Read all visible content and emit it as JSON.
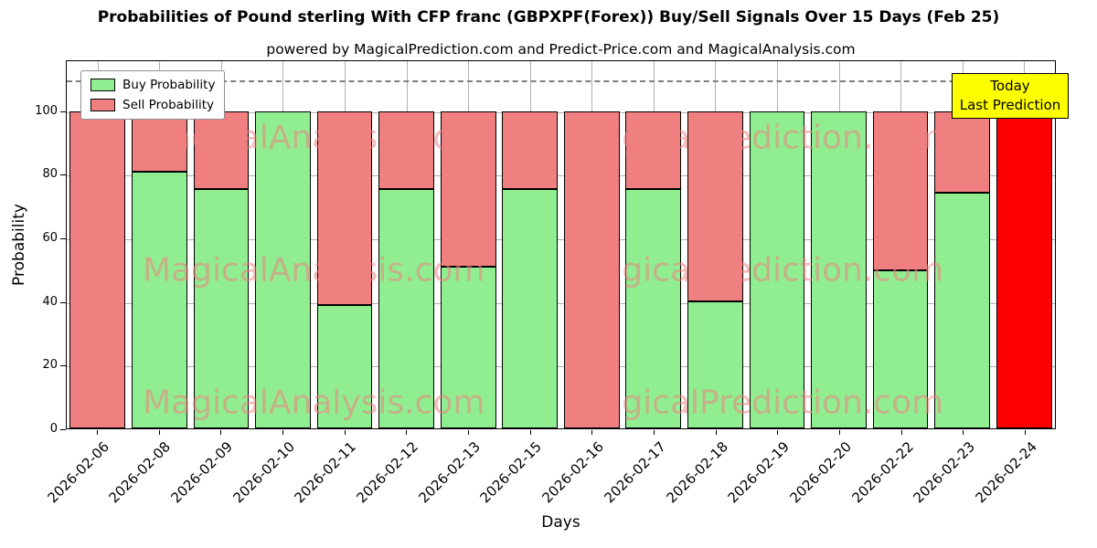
{
  "chart_data": {
    "type": "bar",
    "stacked": true,
    "title": "Probabilities of Pound sterling With CFP franc (GBPXPF(Forex)) Buy/Sell Signals Over 15 Days (Feb 25)",
    "subtitle": "powered by MagicalPrediction.com and Predict-Price.com and MagicalAnalysis.com",
    "xlabel": "Days",
    "ylabel": "Probability",
    "ylim": [
      0,
      116
    ],
    "yticks": [
      0,
      20,
      40,
      60,
      80,
      100
    ],
    "dashed_line_y": 110,
    "grid": true,
    "legend_position": "upper left",
    "categories": [
      "2026-02-06",
      "2026-02-08",
      "2026-02-09",
      "2026-02-10",
      "2026-02-11",
      "2026-02-12",
      "2026-02-13",
      "2026-02-15",
      "2026-02-16",
      "2026-02-17",
      "2026-02-18",
      "2026-02-19",
      "2026-02-20",
      "2026-02-22",
      "2026-02-23",
      "2026-02-24"
    ],
    "series": [
      {
        "name": "Buy Probability",
        "color": "#90EE90",
        "values": [
          0,
          81,
          75.5,
          100,
          39,
          75.5,
          51,
          75.5,
          0,
          75.5,
          40,
          100,
          100,
          50,
          74.5,
          0
        ]
      },
      {
        "name": "Sell Probability",
        "color": "#F08080",
        "values": [
          100,
          19,
          24.5,
          0,
          61,
          24.5,
          49,
          24.5,
          100,
          24.5,
          60,
          0,
          0,
          50,
          25.5,
          100
        ]
      }
    ],
    "today_bar": {
      "index": 15,
      "color": "#FF0000"
    },
    "annotation": {
      "line1": "Today",
      "line2": "Last Prediction"
    },
    "watermarks": [
      {
        "text": "MagicalAnalysis.com",
        "x": 0.25,
        "y": 0.21
      },
      {
        "text": "MagicalPrediction.com",
        "x": 0.7,
        "y": 0.21
      },
      {
        "text": "MagicalAnalysis.com",
        "x": 0.25,
        "y": 0.57
      },
      {
        "text": "MagicalPrediction.com",
        "x": 0.7,
        "y": 0.57
      },
      {
        "text": "MagicalAnalysis.com",
        "x": 0.25,
        "y": 0.93
      },
      {
        "text": "MagicalPrediction.com",
        "x": 0.7,
        "y": 0.93
      }
    ]
  }
}
